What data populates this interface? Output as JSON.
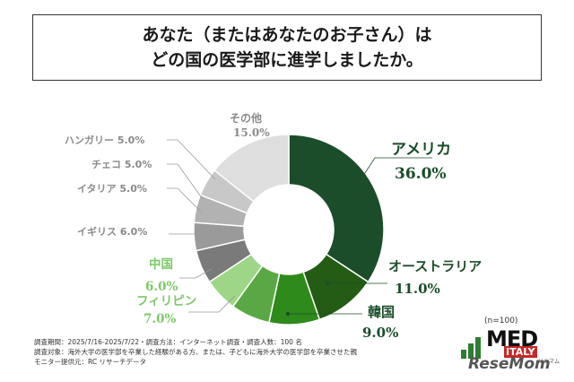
{
  "title": {
    "line1": "あなた（またはあなたのお子さん）は",
    "line2": "どの国の医学部に進学しましたか。"
  },
  "chart_data": {
    "type": "pie",
    "donut": true,
    "slices": [
      {
        "label": "アメリカ",
        "value": 36.0,
        "value_text": "36.0%",
        "color": "#1b4d2a"
      },
      {
        "label": "オーストラリア",
        "value": 11.0,
        "value_text": "11.0%",
        "color": "#245c16"
      },
      {
        "label": "韓国",
        "value": 9.0,
        "value_text": "9.0%",
        "color": "#2e8a1a"
      },
      {
        "label": "フィリピン",
        "value": 7.0,
        "value_text": "7.0%",
        "color": "#5aa845"
      },
      {
        "label": "中国",
        "value": 6.0,
        "value_text": "6.0%",
        "color": "#9ed688"
      },
      {
        "label": "イギリス",
        "value": 6.0,
        "value_text": "6.0%",
        "color": "#7a7a7a"
      },
      {
        "label": "イタリア",
        "value": 5.0,
        "value_text": "5.0%",
        "color": "#9a9a9a"
      },
      {
        "label": "チェコ",
        "value": 5.0,
        "value_text": "5.0%",
        "color": "#b2b2b2"
      },
      {
        "label": "ハンガリー",
        "value": 5.0,
        "value_text": "5.0%",
        "color": "#c8c8c8"
      },
      {
        "label": "その他",
        "value": 15.0,
        "value_text": "15.0%",
        "color": "#dedede"
      }
    ]
  },
  "colors": {
    "dark_green_text": "#1b4d2a",
    "light_green_text": "#7cc96a",
    "gray_text": "#8a8a8a"
  },
  "footnotes": [
    "調査期間：2025/7/16-2025/7/22・調査方法：インターネット調査・調査人数：100 名",
    "調査対象：海外大学の医学部を卒業した経験がある方、または、子どもに海外大学の医学部を卒業させた親",
    "モニター提供元：RC リサーチデータ"
  ],
  "sample_size": "(n=100)",
  "logo": {
    "med": "MED",
    "italy": "ITALY",
    "resemom": "ReseMom",
    "resemom_kana": "リセマム"
  }
}
